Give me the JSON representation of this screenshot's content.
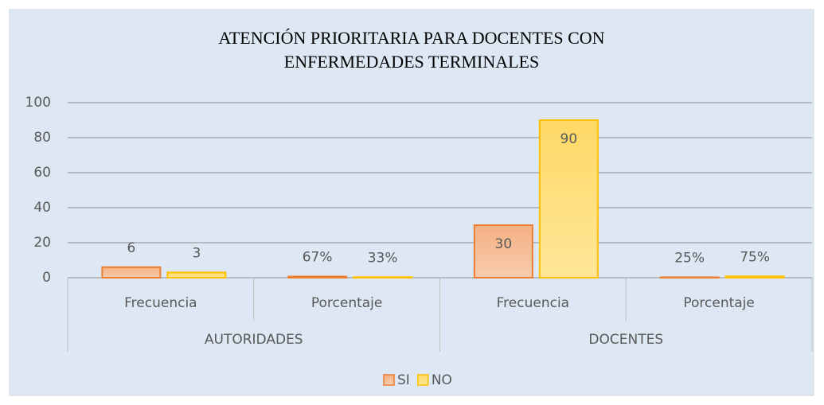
{
  "chart_data": {
    "type": "bar",
    "title": [
      "ATENCIÓN PRIORITARIA  PARA DOCENTES CON",
      "ENFERMEDADES TERMINALES"
    ],
    "categories": [
      "Frecuencia",
      "Porcentaje",
      "Frecuencia",
      "Porcentaje"
    ],
    "category_groups": [
      "AUTORIDADES",
      "DOCENTES"
    ],
    "series": [
      {
        "name": "SI",
        "color": "#ed7d31",
        "values": [
          6,
          0.67,
          30,
          0.25
        ],
        "value_labels": [
          "6",
          "67%",
          "30",
          "25%"
        ]
      },
      {
        "name": "NO",
        "color": "#ffc000",
        "values": [
          3,
          0.33,
          90,
          0.75
        ],
        "value_labels": [
          "3",
          "33%",
          "90",
          "75%"
        ]
      }
    ],
    "ylim": [
      0,
      100
    ],
    "yticks": [
      0,
      20,
      40,
      60,
      80,
      100
    ],
    "grid": true,
    "legend": "bottom"
  }
}
